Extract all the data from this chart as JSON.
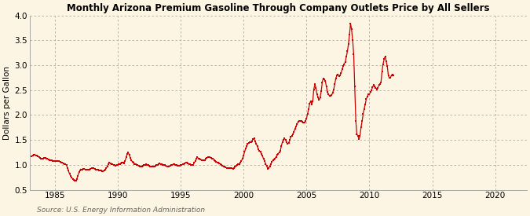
{
  "title": "Monthly Arizona Premium Gasoline Through Company Outlets Price by All Sellers",
  "ylabel": "Dollars per Gallon",
  "source": "Source: U.S. Energy Information Administration",
  "ylim": [
    0.5,
    4.0
  ],
  "yticks": [
    0.5,
    1.0,
    1.5,
    2.0,
    2.5,
    3.0,
    3.5,
    4.0
  ],
  "xlim_start": 1983.0,
  "xlim_end": 2022.5,
  "xticks": [
    1985,
    1990,
    1995,
    2000,
    2005,
    2010,
    2015,
    2020
  ],
  "background_color": "#fdf5e4",
  "marker_color": "#cc0000",
  "line_color": "#cc0000",
  "data": [
    [
      1983.17,
      1.17
    ],
    [
      1983.25,
      1.19
    ],
    [
      1983.33,
      1.2
    ],
    [
      1983.42,
      1.2
    ],
    [
      1983.5,
      1.19
    ],
    [
      1983.58,
      1.18
    ],
    [
      1983.67,
      1.17
    ],
    [
      1983.75,
      1.16
    ],
    [
      1983.83,
      1.14
    ],
    [
      1983.92,
      1.13
    ],
    [
      1984.0,
      1.12
    ],
    [
      1984.08,
      1.13
    ],
    [
      1984.17,
      1.14
    ],
    [
      1984.25,
      1.14
    ],
    [
      1984.33,
      1.13
    ],
    [
      1984.42,
      1.12
    ],
    [
      1984.5,
      1.11
    ],
    [
      1984.58,
      1.1
    ],
    [
      1984.67,
      1.09
    ],
    [
      1984.75,
      1.09
    ],
    [
      1984.83,
      1.08
    ],
    [
      1984.92,
      1.07
    ],
    [
      1985.0,
      1.07
    ],
    [
      1985.08,
      1.07
    ],
    [
      1985.17,
      1.08
    ],
    [
      1985.25,
      1.08
    ],
    [
      1985.33,
      1.07
    ],
    [
      1985.42,
      1.06
    ],
    [
      1985.5,
      1.05
    ],
    [
      1985.58,
      1.04
    ],
    [
      1985.67,
      1.03
    ],
    [
      1985.75,
      1.02
    ],
    [
      1985.83,
      1.01
    ],
    [
      1985.92,
      1.0
    ],
    [
      1986.0,
      0.94
    ],
    [
      1986.08,
      0.88
    ],
    [
      1986.17,
      0.82
    ],
    [
      1986.25,
      0.78
    ],
    [
      1986.33,
      0.75
    ],
    [
      1986.42,
      0.72
    ],
    [
      1986.5,
      0.7
    ],
    [
      1986.58,
      0.69
    ],
    [
      1986.67,
      0.68
    ],
    [
      1986.75,
      0.72
    ],
    [
      1986.83,
      0.78
    ],
    [
      1986.92,
      0.85
    ],
    [
      1987.0,
      0.88
    ],
    [
      1987.08,
      0.9
    ],
    [
      1987.17,
      0.91
    ],
    [
      1987.25,
      0.92
    ],
    [
      1987.33,
      0.92
    ],
    [
      1987.42,
      0.91
    ],
    [
      1987.5,
      0.91
    ],
    [
      1987.58,
      0.9
    ],
    [
      1987.67,
      0.9
    ],
    [
      1987.75,
      0.91
    ],
    [
      1987.83,
      0.92
    ],
    [
      1987.92,
      0.93
    ],
    [
      1988.0,
      0.94
    ],
    [
      1988.08,
      0.93
    ],
    [
      1988.17,
      0.92
    ],
    [
      1988.25,
      0.91
    ],
    [
      1988.33,
      0.9
    ],
    [
      1988.42,
      0.9
    ],
    [
      1988.5,
      0.89
    ],
    [
      1988.58,
      0.89
    ],
    [
      1988.67,
      0.88
    ],
    [
      1988.75,
      0.87
    ],
    [
      1988.83,
      0.87
    ],
    [
      1988.92,
      0.88
    ],
    [
      1989.0,
      0.9
    ],
    [
      1989.08,
      0.93
    ],
    [
      1989.17,
      0.97
    ],
    [
      1989.25,
      1.01
    ],
    [
      1989.33,
      1.04
    ],
    [
      1989.42,
      1.03
    ],
    [
      1989.5,
      1.02
    ],
    [
      1989.58,
      1.01
    ],
    [
      1989.67,
      1.0
    ],
    [
      1989.75,
      0.99
    ],
    [
      1989.83,
      0.98
    ],
    [
      1989.92,
      0.99
    ],
    [
      1990.0,
      1.0
    ],
    [
      1990.08,
      1.01
    ],
    [
      1990.17,
      1.02
    ],
    [
      1990.25,
      1.03
    ],
    [
      1990.33,
      1.04
    ],
    [
      1990.42,
      1.04
    ],
    [
      1990.5,
      1.03
    ],
    [
      1990.58,
      1.08
    ],
    [
      1990.67,
      1.15
    ],
    [
      1990.75,
      1.22
    ],
    [
      1990.83,
      1.25
    ],
    [
      1990.92,
      1.2
    ],
    [
      1991.0,
      1.14
    ],
    [
      1991.08,
      1.09
    ],
    [
      1991.17,
      1.06
    ],
    [
      1991.25,
      1.04
    ],
    [
      1991.33,
      1.02
    ],
    [
      1991.42,
      1.01
    ],
    [
      1991.5,
      1.0
    ],
    [
      1991.58,
      0.99
    ],
    [
      1991.67,
      0.98
    ],
    [
      1991.75,
      0.97
    ],
    [
      1991.83,
      0.96
    ],
    [
      1991.92,
      0.97
    ],
    [
      1992.0,
      0.98
    ],
    [
      1992.08,
      0.99
    ],
    [
      1992.17,
      1.0
    ],
    [
      1992.25,
      1.01
    ],
    [
      1992.33,
      1.0
    ],
    [
      1992.42,
      0.99
    ],
    [
      1992.5,
      0.98
    ],
    [
      1992.58,
      0.97
    ],
    [
      1992.67,
      0.96
    ],
    [
      1992.75,
      0.96
    ],
    [
      1992.83,
      0.96
    ],
    [
      1992.92,
      0.97
    ],
    [
      1993.0,
      0.98
    ],
    [
      1993.08,
      0.99
    ],
    [
      1993.17,
      1.0
    ],
    [
      1993.25,
      1.02
    ],
    [
      1993.33,
      1.03
    ],
    [
      1993.42,
      1.02
    ],
    [
      1993.5,
      1.01
    ],
    [
      1993.58,
      1.0
    ],
    [
      1993.67,
      0.99
    ],
    [
      1993.75,
      0.99
    ],
    [
      1993.83,
      0.98
    ],
    [
      1993.92,
      0.97
    ],
    [
      1994.0,
      0.97
    ],
    [
      1994.08,
      0.97
    ],
    [
      1994.17,
      0.98
    ],
    [
      1994.25,
      0.99
    ],
    [
      1994.33,
      1.0
    ],
    [
      1994.42,
      1.01
    ],
    [
      1994.5,
      1.01
    ],
    [
      1994.58,
      1.0
    ],
    [
      1994.67,
      0.99
    ],
    [
      1994.75,
      0.98
    ],
    [
      1994.83,
      0.98
    ],
    [
      1994.92,
      0.98
    ],
    [
      1995.0,
      0.99
    ],
    [
      1995.08,
      1.0
    ],
    [
      1995.17,
      1.01
    ],
    [
      1995.25,
      1.02
    ],
    [
      1995.33,
      1.03
    ],
    [
      1995.42,
      1.04
    ],
    [
      1995.5,
      1.04
    ],
    [
      1995.58,
      1.03
    ],
    [
      1995.67,
      1.02
    ],
    [
      1995.75,
      1.01
    ],
    [
      1995.83,
      1.0
    ],
    [
      1995.92,
      0.99
    ],
    [
      1996.0,
      1.0
    ],
    [
      1996.08,
      1.04
    ],
    [
      1996.17,
      1.08
    ],
    [
      1996.25,
      1.13
    ],
    [
      1996.33,
      1.15
    ],
    [
      1996.42,
      1.13
    ],
    [
      1996.5,
      1.12
    ],
    [
      1996.58,
      1.11
    ],
    [
      1996.67,
      1.1
    ],
    [
      1996.75,
      1.09
    ],
    [
      1996.83,
      1.09
    ],
    [
      1996.92,
      1.1
    ],
    [
      1997.0,
      1.12
    ],
    [
      1997.08,
      1.14
    ],
    [
      1997.17,
      1.15
    ],
    [
      1997.25,
      1.16
    ],
    [
      1997.33,
      1.15
    ],
    [
      1997.42,
      1.14
    ],
    [
      1997.5,
      1.13
    ],
    [
      1997.58,
      1.12
    ],
    [
      1997.67,
      1.1
    ],
    [
      1997.75,
      1.08
    ],
    [
      1997.83,
      1.06
    ],
    [
      1997.92,
      1.05
    ],
    [
      1998.0,
      1.04
    ],
    [
      1998.08,
      1.03
    ],
    [
      1998.17,
      1.01
    ],
    [
      1998.25,
      0.99
    ],
    [
      1998.33,
      0.98
    ],
    [
      1998.42,
      0.97
    ],
    [
      1998.5,
      0.96
    ],
    [
      1998.58,
      0.95
    ],
    [
      1998.67,
      0.94
    ],
    [
      1998.75,
      0.93
    ],
    [
      1998.83,
      0.93
    ],
    [
      1998.92,
      0.93
    ],
    [
      1999.0,
      0.93
    ],
    [
      1999.08,
      0.93
    ],
    [
      1999.17,
      0.92
    ],
    [
      1999.25,
      0.93
    ],
    [
      1999.33,
      0.96
    ],
    [
      1999.42,
      0.98
    ],
    [
      1999.5,
      1.0
    ],
    [
      1999.58,
      1.01
    ],
    [
      1999.67,
      1.02
    ],
    [
      1999.75,
      1.05
    ],
    [
      1999.83,
      1.08
    ],
    [
      1999.92,
      1.13
    ],
    [
      2000.0,
      1.19
    ],
    [
      2000.08,
      1.26
    ],
    [
      2000.17,
      1.33
    ],
    [
      2000.25,
      1.38
    ],
    [
      2000.33,
      1.42
    ],
    [
      2000.42,
      1.44
    ],
    [
      2000.5,
      1.46
    ],
    [
      2000.58,
      1.45
    ],
    [
      2000.67,
      1.47
    ],
    [
      2000.75,
      1.52
    ],
    [
      2000.83,
      1.53
    ],
    [
      2000.92,
      1.47
    ],
    [
      2001.0,
      1.43
    ],
    [
      2001.08,
      1.38
    ],
    [
      2001.17,
      1.32
    ],
    [
      2001.25,
      1.28
    ],
    [
      2001.33,
      1.26
    ],
    [
      2001.42,
      1.22
    ],
    [
      2001.5,
      1.18
    ],
    [
      2001.58,
      1.12
    ],
    [
      2001.67,
      1.08
    ],
    [
      2001.75,
      1.02
    ],
    [
      2001.83,
      0.98
    ],
    [
      2001.92,
      0.92
    ],
    [
      2002.0,
      0.94
    ],
    [
      2002.08,
      0.97
    ],
    [
      2002.17,
      1.02
    ],
    [
      2002.25,
      1.06
    ],
    [
      2002.33,
      1.09
    ],
    [
      2002.42,
      1.11
    ],
    [
      2002.5,
      1.13
    ],
    [
      2002.58,
      1.16
    ],
    [
      2002.67,
      1.2
    ],
    [
      2002.75,
      1.22
    ],
    [
      2002.83,
      1.25
    ],
    [
      2002.92,
      1.28
    ],
    [
      2003.0,
      1.38
    ],
    [
      2003.08,
      1.45
    ],
    [
      2003.17,
      1.5
    ],
    [
      2003.25,
      1.53
    ],
    [
      2003.33,
      1.5
    ],
    [
      2003.42,
      1.45
    ],
    [
      2003.5,
      1.42
    ],
    [
      2003.58,
      1.44
    ],
    [
      2003.67,
      1.5
    ],
    [
      2003.75,
      1.56
    ],
    [
      2003.83,
      1.58
    ],
    [
      2003.92,
      1.62
    ],
    [
      2004.0,
      1.66
    ],
    [
      2004.08,
      1.72
    ],
    [
      2004.17,
      1.77
    ],
    [
      2004.25,
      1.82
    ],
    [
      2004.33,
      1.86
    ],
    [
      2004.42,
      1.88
    ],
    [
      2004.5,
      1.88
    ],
    [
      2004.58,
      1.88
    ],
    [
      2004.67,
      1.86
    ],
    [
      2004.75,
      1.85
    ],
    [
      2004.83,
      1.85
    ],
    [
      2004.92,
      1.88
    ],
    [
      2005.0,
      1.93
    ],
    [
      2005.08,
      2.02
    ],
    [
      2005.17,
      2.12
    ],
    [
      2005.25,
      2.23
    ],
    [
      2005.33,
      2.28
    ],
    [
      2005.42,
      2.22
    ],
    [
      2005.5,
      2.28
    ],
    [
      2005.58,
      2.52
    ],
    [
      2005.67,
      2.62
    ],
    [
      2005.75,
      2.55
    ],
    [
      2005.83,
      2.42
    ],
    [
      2005.92,
      2.35
    ],
    [
      2006.0,
      2.3
    ],
    [
      2006.08,
      2.35
    ],
    [
      2006.17,
      2.48
    ],
    [
      2006.25,
      2.65
    ],
    [
      2006.33,
      2.74
    ],
    [
      2006.42,
      2.72
    ],
    [
      2006.5,
      2.68
    ],
    [
      2006.58,
      2.57
    ],
    [
      2006.67,
      2.46
    ],
    [
      2006.75,
      2.42
    ],
    [
      2006.83,
      2.38
    ],
    [
      2006.92,
      2.38
    ],
    [
      2007.0,
      2.4
    ],
    [
      2007.08,
      2.45
    ],
    [
      2007.17,
      2.52
    ],
    [
      2007.25,
      2.63
    ],
    [
      2007.33,
      2.74
    ],
    [
      2007.42,
      2.8
    ],
    [
      2007.5,
      2.82
    ],
    [
      2007.58,
      2.78
    ],
    [
      2007.67,
      2.8
    ],
    [
      2007.75,
      2.84
    ],
    [
      2007.83,
      2.92
    ],
    [
      2007.92,
      2.98
    ],
    [
      2008.0,
      3.02
    ],
    [
      2008.08,
      3.07
    ],
    [
      2008.17,
      3.18
    ],
    [
      2008.25,
      3.28
    ],
    [
      2008.33,
      3.42
    ],
    [
      2008.42,
      3.62
    ],
    [
      2008.5,
      3.84
    ],
    [
      2008.58,
      3.72
    ],
    [
      2008.67,
      3.5
    ],
    [
      2008.75,
      3.22
    ],
    [
      2008.83,
      2.58
    ],
    [
      2008.92,
      1.88
    ],
    [
      2009.0,
      1.62
    ],
    [
      2009.08,
      1.58
    ],
    [
      2009.17,
      1.52
    ],
    [
      2009.25,
      1.58
    ],
    [
      2009.33,
      1.75
    ],
    [
      2009.42,
      1.88
    ],
    [
      2009.5,
      2.02
    ],
    [
      2009.58,
      2.12
    ],
    [
      2009.67,
      2.22
    ],
    [
      2009.75,
      2.32
    ],
    [
      2009.83,
      2.37
    ],
    [
      2009.92,
      2.42
    ],
    [
      2010.0,
      2.42
    ],
    [
      2010.08,
      2.46
    ],
    [
      2010.17,
      2.5
    ],
    [
      2010.25,
      2.56
    ],
    [
      2010.33,
      2.6
    ],
    [
      2010.42,
      2.58
    ],
    [
      2010.5,
      2.55
    ],
    [
      2010.58,
      2.52
    ],
    [
      2010.67,
      2.55
    ],
    [
      2010.75,
      2.6
    ],
    [
      2010.83,
      2.62
    ],
    [
      2010.92,
      2.66
    ],
    [
      2011.0,
      2.88
    ],
    [
      2011.08,
      3.02
    ],
    [
      2011.17,
      3.12
    ],
    [
      2011.25,
      3.18
    ],
    [
      2011.33,
      3.08
    ],
    [
      2011.42,
      2.98
    ],
    [
      2011.5,
      2.8
    ],
    [
      2011.58,
      2.75
    ],
    [
      2011.67,
      2.75
    ],
    [
      2011.75,
      2.8
    ],
    [
      2011.83,
      2.82
    ],
    [
      2011.92,
      2.8
    ]
  ]
}
